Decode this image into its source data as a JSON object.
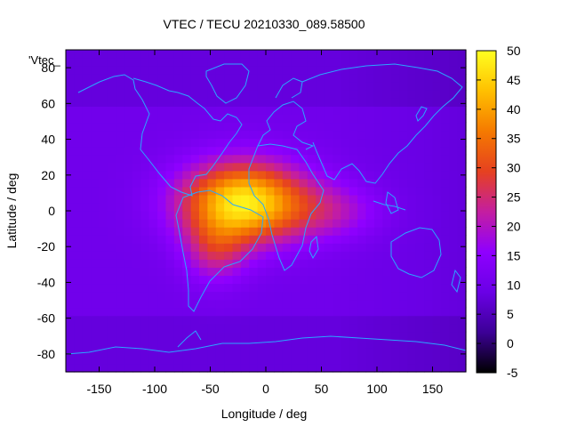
{
  "chart_data": {
    "type": "heatmap",
    "title": "VTEC / TECU 20210330_089.58500",
    "xlabel": "Longitude / deg",
    "ylabel": "Latitude / deg",
    "legend_key": "'Vtec_",
    "xlim": [
      -180,
      180
    ],
    "ylim": [
      -90,
      90
    ],
    "x_ticks": [
      -150,
      -100,
      -50,
      0,
      50,
      100,
      150
    ],
    "y_ticks": [
      -80,
      -60,
      -40,
      -20,
      0,
      20,
      40,
      60,
      80
    ],
    "colorbar": {
      "range": [
        -5,
        50
      ],
      "ticks": [
        -5,
        0,
        5,
        10,
        15,
        20,
        25,
        30,
        35,
        40,
        45,
        50
      ],
      "colors": [
        "#000000",
        "#3c0096",
        "#6a00e6",
        "#8f00ff",
        "#c41ea0",
        "#e64120",
        "#f57a00",
        "#ffc000",
        "#ffff20"
      ]
    },
    "peak": {
      "lon": -20,
      "lat": 5,
      "value": 48
    },
    "background_level": 10,
    "overlay": "coastlines"
  }
}
